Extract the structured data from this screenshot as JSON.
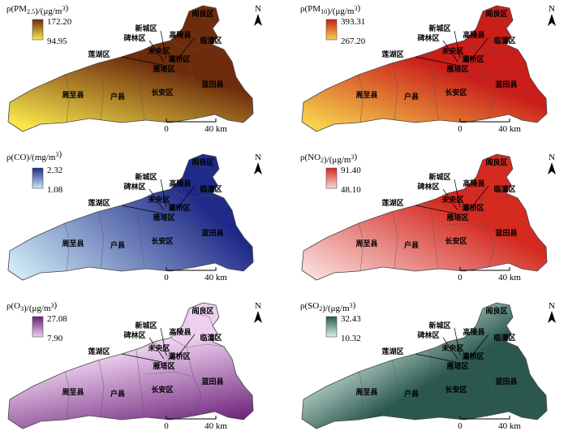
{
  "districts": [
    "阎良区",
    "新城区",
    "高陵县",
    "碑林区",
    "临潼区",
    "莲湖区",
    "未央区",
    "灞桥区",
    "雁塔区",
    "周至县",
    "户县",
    "长安区",
    "蓝田县"
  ],
  "scale": {
    "start": "0",
    "end": "40 km"
  },
  "north": "N",
  "panels": [
    {
      "title": [
        {
          "text": "ρ(PM"
        },
        {
          "text": "2.5",
          "sub": true
        },
        {
          "text": ")/(μg/m"
        },
        {
          "text": "3",
          "sup": true
        },
        {
          "text": ")"
        }
      ],
      "max": {
        "value": 172.2,
        "label": "172.20"
      },
      "min": 94.95,
      "colors": [
        "#6e2c0c",
        "#f8e84c"
      ]
    },
    {
      "title": [
        {
          "text": "ρ(PM"
        },
        {
          "text": "10",
          "sub": true
        },
        {
          "text": ")/(μg/m"
        },
        {
          "text": "3",
          "sup": true
        },
        {
          "text": ")"
        }
      ],
      "max": 393.31,
      "min": {
        "value": 267.2,
        "label": "267.20"
      },
      "colors": [
        "#c91e1a",
        "#f7d24c"
      ]
    },
    {
      "title": [
        {
          "text": "ρ(CO)/(mg/m"
        },
        {
          "text": "3",
          "sup": true
        },
        {
          "text": ")"
        }
      ],
      "max": 2.32,
      "min": 1.08,
      "colors": [
        "#1f2a88",
        "#cde8f6"
      ]
    },
    {
      "title": [
        {
          "text": "ρ(NO"
        },
        {
          "text": "2",
          "sub": true
        },
        {
          "text": ")/(μg/m"
        },
        {
          "text": "3",
          "sup": true
        },
        {
          "text": ")"
        }
      ],
      "max": {
        "value": 91.4,
        "label": "91.40"
      },
      "min": {
        "value": 48.1,
        "label": "48.10"
      },
      "colors": [
        "#d42a20",
        "#f8d8d8"
      ]
    },
    {
      "title": [
        {
          "text": "ρ(O"
        },
        {
          "text": "3",
          "sub": true
        },
        {
          "text": ")/(μg/m"
        },
        {
          "text": "3",
          "sup": true
        },
        {
          "text": ")"
        }
      ],
      "max": 27.08,
      "min": {
        "value": 7.9,
        "label": "7.90"
      },
      "colors": [
        "#6a1e78",
        "#ecd0ee"
      ]
    },
    {
      "title": [
        {
          "text": "ρ(SO"
        },
        {
          "text": "2",
          "sub": true
        },
        {
          "text": ")/(μg/m"
        },
        {
          "text": "3",
          "sup": true
        },
        {
          "text": ")"
        }
      ],
      "max": 32.43,
      "min": 10.32,
      "colors": [
        "#2a584e",
        "#dbefe8"
      ]
    }
  ]
}
